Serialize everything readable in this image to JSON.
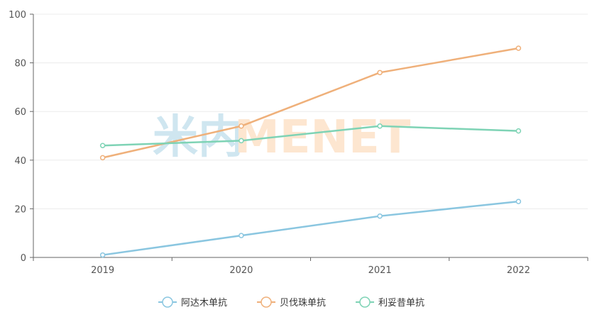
{
  "chart_data": {
    "type": "line",
    "categories": [
      "2019",
      "2020",
      "2021",
      "2022"
    ],
    "ylim": [
      0,
      100
    ],
    "yticks": [
      "0",
      "20",
      "40",
      "60",
      "80",
      "100"
    ],
    "grid": true,
    "legend_position": "bottom",
    "series": [
      {
        "name": "阿达木单抗",
        "color": "#8ac6e0",
        "values": [
          1,
          9,
          17,
          23
        ]
      },
      {
        "name": "贝伐珠单抗",
        "color": "#efb07a",
        "values": [
          41,
          54,
          76,
          86
        ]
      },
      {
        "name": "利妥昔单抗",
        "color": "#7ed3b5",
        "values": [
          46,
          48,
          54,
          52
        ]
      }
    ]
  },
  "watermark": {
    "text_left": "米内",
    "text_right": "MENET",
    "color_left": "#cfe6f0",
    "color_right": "#fde6d0"
  }
}
